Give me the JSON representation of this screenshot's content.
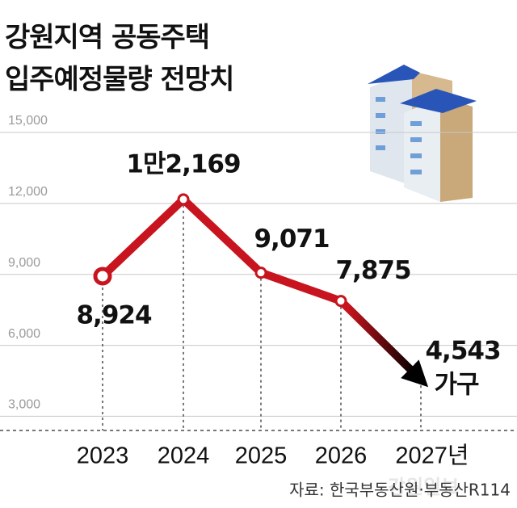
{
  "chart_data": {
    "type": "line",
    "title": [
      "강원지역 공동주택",
      "입주예정물량 전망치"
    ],
    "categories": [
      "2023",
      "2024",
      "2025",
      "2026",
      "2027년"
    ],
    "series": [
      {
        "color": "#c8141e",
        "values": [
          8924,
          12169,
          9071,
          7875,
          4543
        ],
        "value_labels": [
          "8,924",
          "1만2,169",
          "9,071",
          "7,875",
          "4,543"
        ]
      }
    ],
    "unit_annotation": "가구",
    "ylim": [
      2400,
      15000
    ],
    "yticks": [
      {
        "value": 3000,
        "label": "3,000"
      },
      {
        "value": 6000,
        "label": "6,000"
      },
      {
        "value": 9000,
        "label": "9,000"
      },
      {
        "value": 12000,
        "label": "12,000"
      },
      {
        "value": 15000,
        "label": "15,000"
      }
    ],
    "grid": true,
    "source": "자료: 한국부동산원·부동산R114",
    "watermark": "강원일보"
  }
}
